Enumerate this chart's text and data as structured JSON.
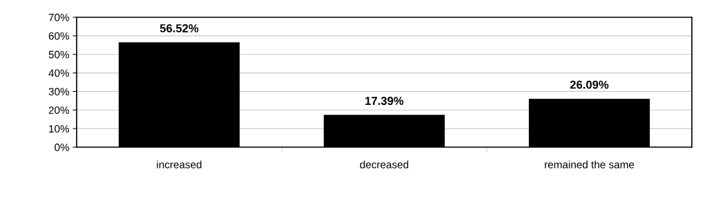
{
  "chart_data": {
    "type": "bar",
    "categories": [
      "increased",
      "decreased",
      "remained the same"
    ],
    "values": [
      56.52,
      17.39,
      26.09
    ],
    "value_labels": [
      "56.52%",
      "17.39%",
      "26.09%"
    ],
    "color": "#000000",
    "ylim": [
      0,
      70
    ],
    "yticks": [
      {
        "value": 0,
        "label": "0%"
      },
      {
        "value": 10,
        "label": "10%"
      },
      {
        "value": 20,
        "label": "20%"
      },
      {
        "value": 30,
        "label": "30%"
      },
      {
        "value": 40,
        "label": "40%"
      },
      {
        "value": 50,
        "label": "50%"
      },
      {
        "value": 60,
        "label": "60%"
      },
      {
        "value": 70,
        "label": "70%"
      }
    ],
    "grid": "y"
  }
}
